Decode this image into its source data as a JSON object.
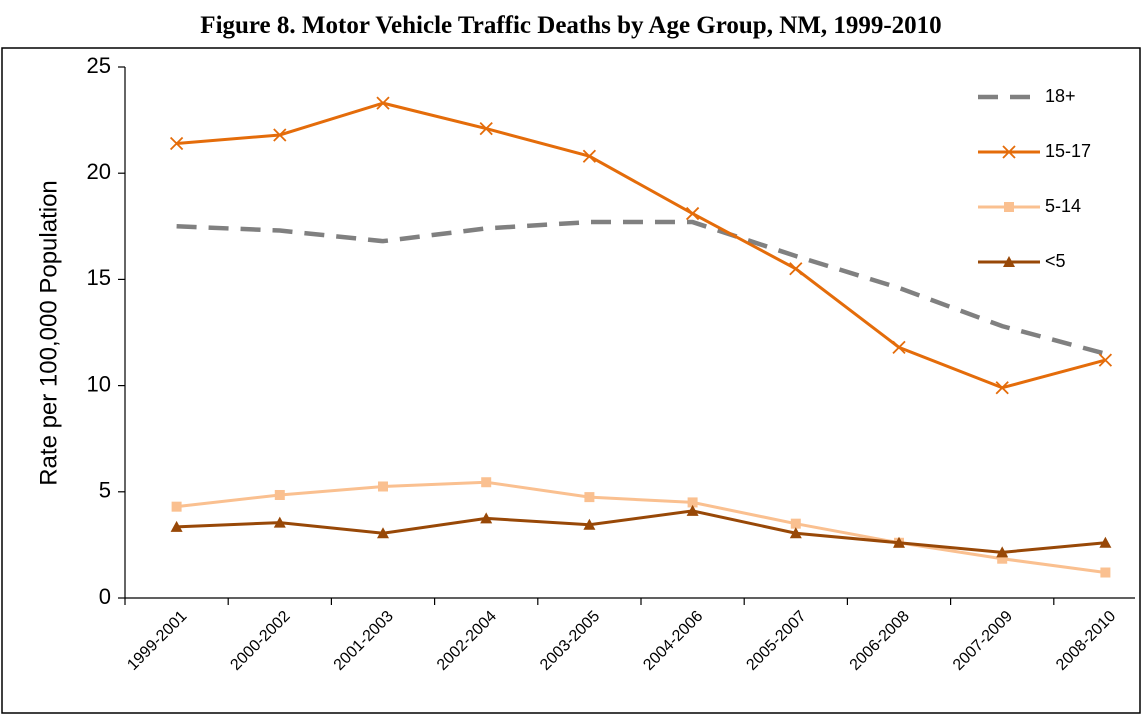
{
  "chart_data": {
    "type": "line",
    "title": "Figure 8.  Motor Vehicle Traffic Deaths by Age Group, NM, 1999-2010",
    "y_label": "Rate per 100,000 Population",
    "categories": [
      "1999-2001",
      "2000-2002",
      "2001-2003",
      "2002-2004",
      "2003-2005",
      "2004-2006",
      "2005-2007",
      "2006-2008",
      "2007-2009",
      "2008-2010"
    ],
    "series": [
      {
        "name": "18+",
        "color": "#808080",
        "dash": true,
        "marker": null,
        "values": [
          17.5,
          17.3,
          16.8,
          17.4,
          17.7,
          17.7,
          16.1,
          14.6,
          12.8,
          11.5
        ]
      },
      {
        "name": "15-17",
        "color": "#e46c0a",
        "dash": false,
        "marker": "x",
        "values": [
          21.4,
          21.8,
          23.3,
          22.1,
          20.8,
          18.1,
          15.5,
          11.8,
          9.9,
          11.2
        ]
      },
      {
        "name": "5-14",
        "color": "#fac090",
        "dash": false,
        "marker": "square",
        "values": [
          4.3,
          4.85,
          5.25,
          5.45,
          4.75,
          4.5,
          3.5,
          2.6,
          1.85,
          1.2
        ]
      },
      {
        "name": "<5",
        "color": "#984807",
        "dash": false,
        "marker": "triangle",
        "values": [
          3.35,
          3.55,
          3.05,
          3.75,
          3.45,
          4.1,
          3.05,
          2.6,
          2.15,
          2.6
        ]
      }
    ],
    "ylim": [
      0,
      25
    ],
    "yticks": [
      0,
      5,
      10,
      15,
      20,
      25
    ],
    "grid": false,
    "legend": "top-right"
  }
}
